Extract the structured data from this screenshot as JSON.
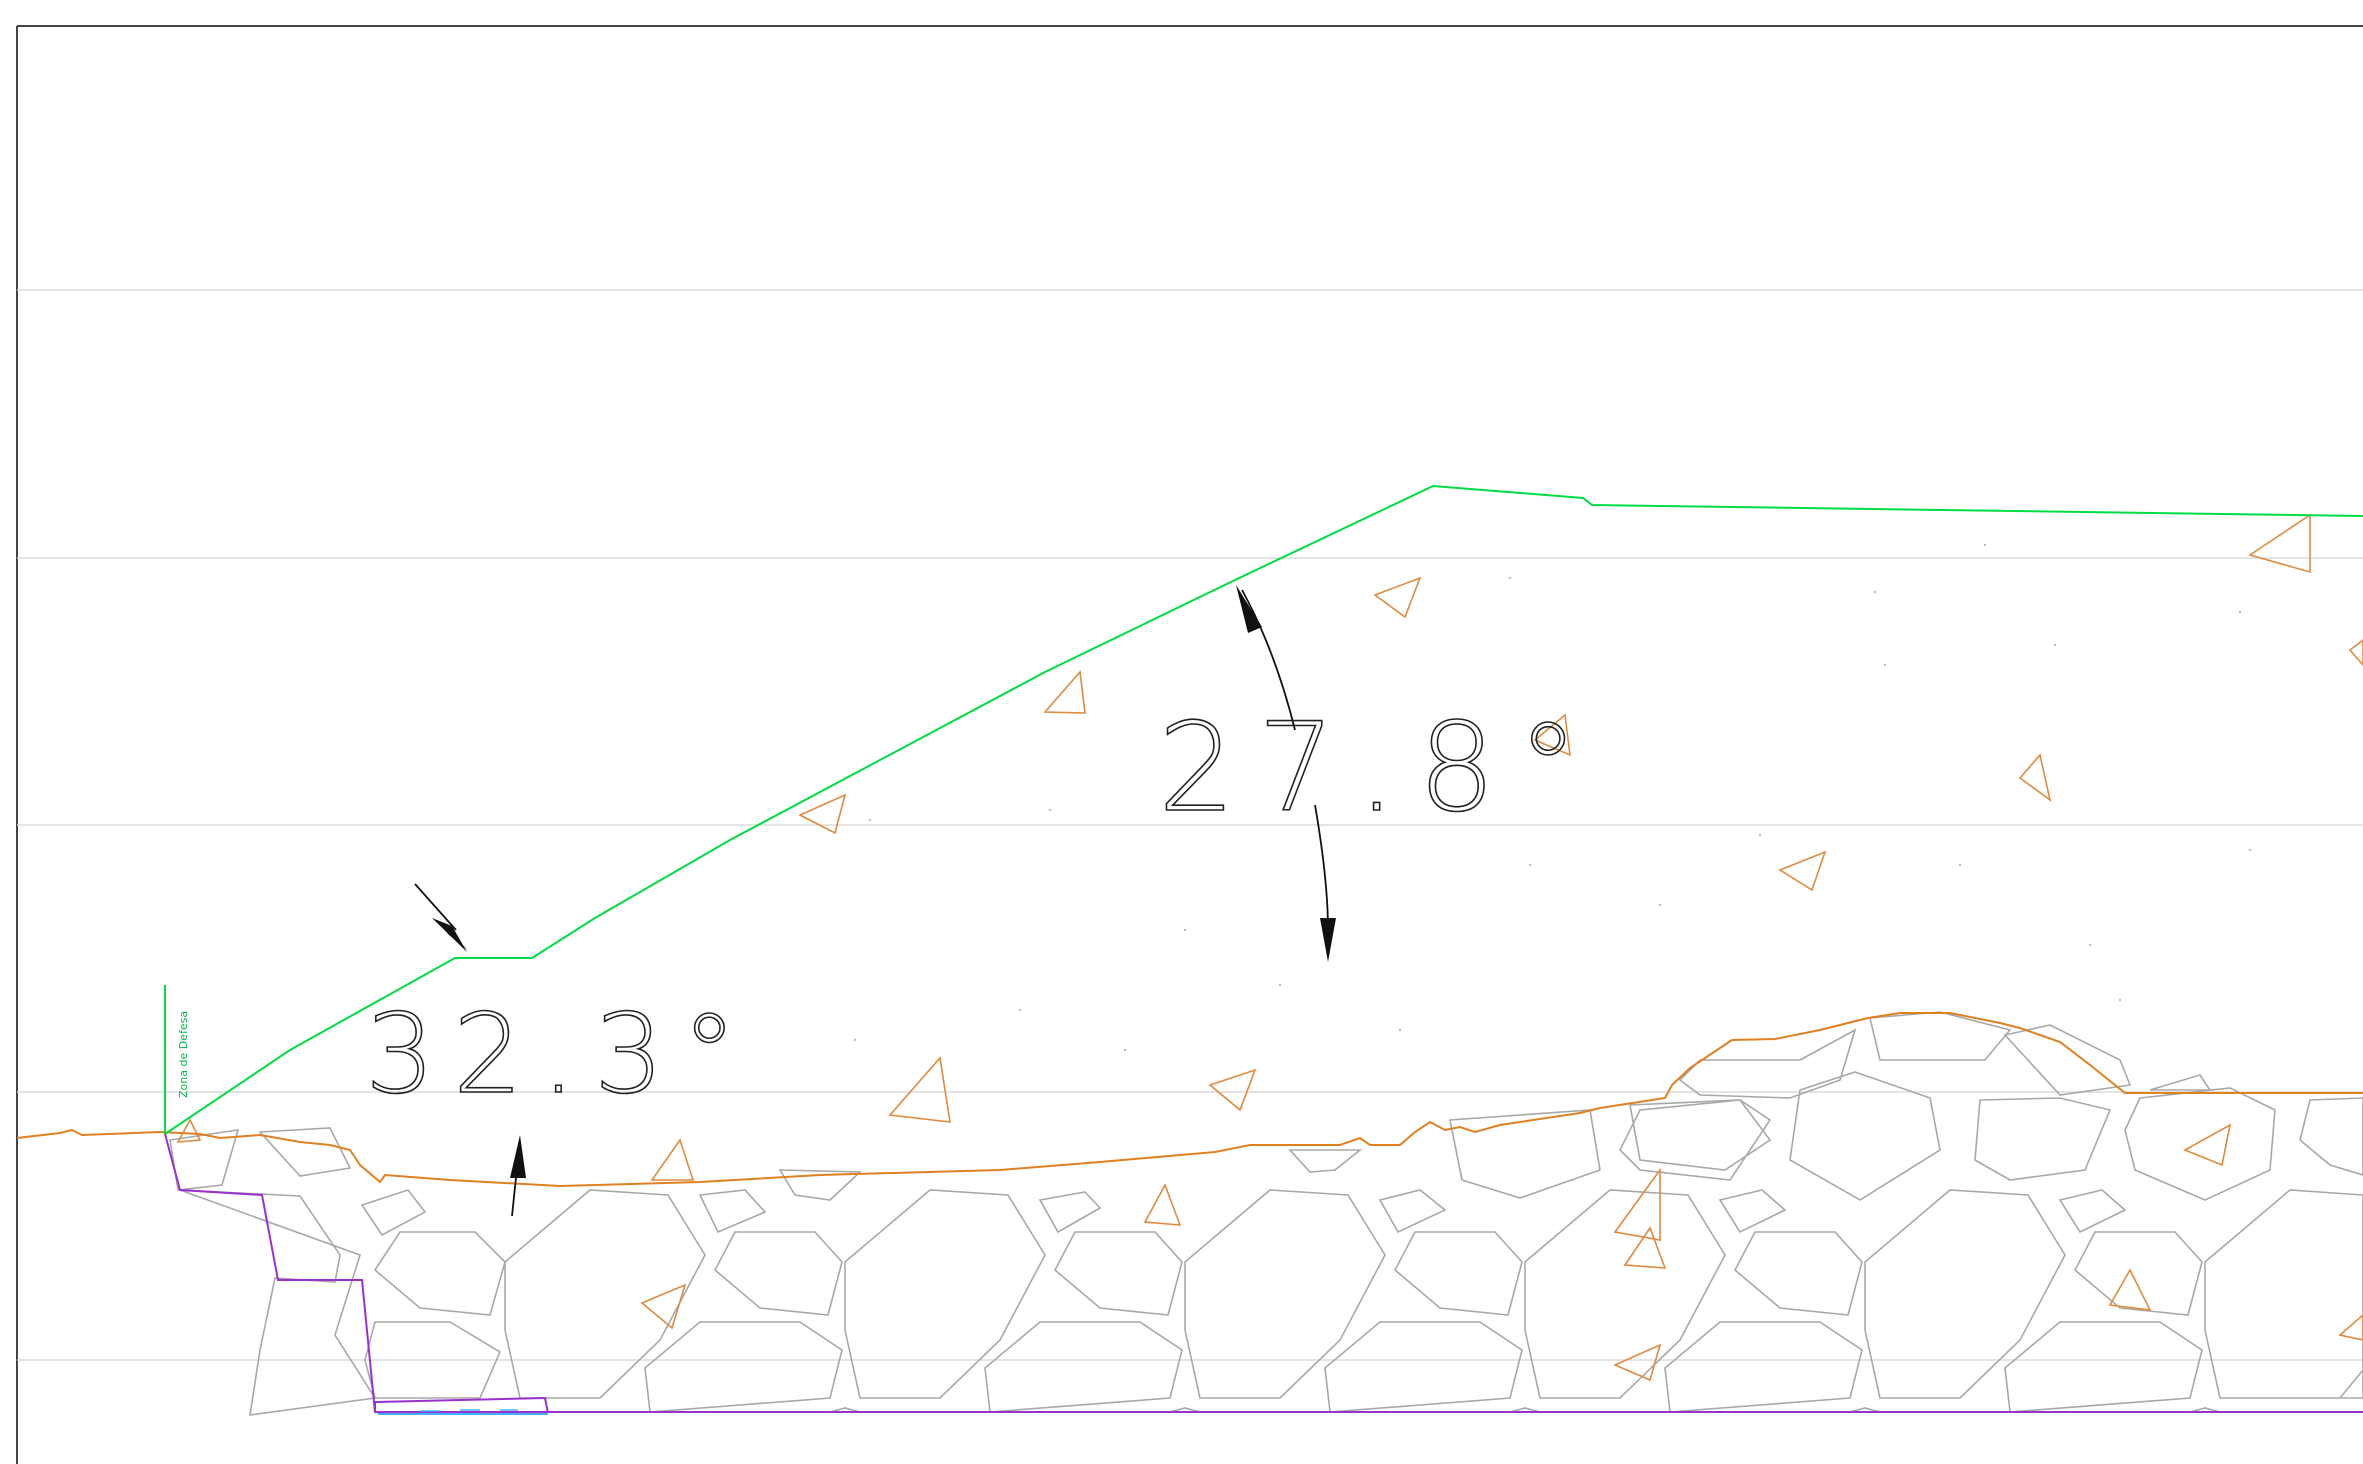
{
  "drawing": {
    "angle_labels": {
      "upper_slope": "27.8°",
      "lower_slope": "32.3°"
    },
    "zone_label": "Zona de Defesa",
    "colors": {
      "fill_surface": "#00dd44",
      "terrain_line": "#e08020",
      "rock_outline": "#a0a0a0",
      "aggregate_marks": "#e08a40",
      "excavation_line": "#9a30d0",
      "foundation_line": "#40b0ff",
      "grid_line": "#d8d8d8",
      "dimension": "#111111",
      "frame": "#444444"
    }
  }
}
